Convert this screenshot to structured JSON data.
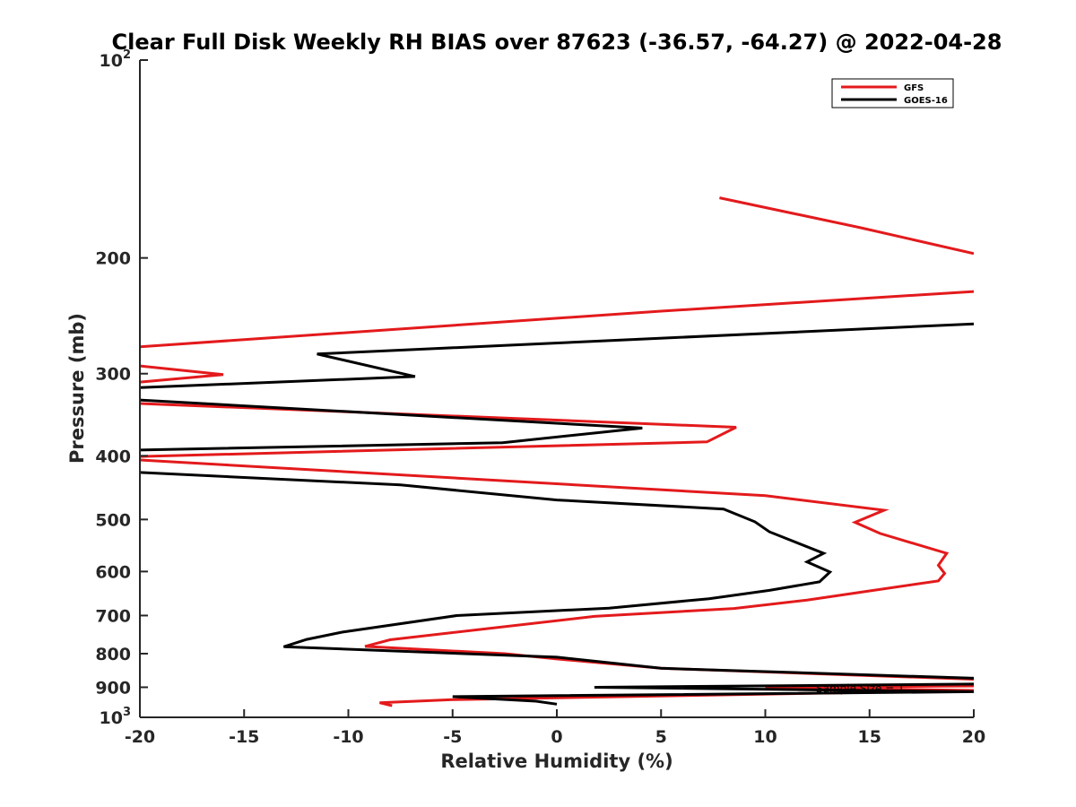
{
  "chart_data": {
    "type": "line",
    "title": "Clear Full Disk Weekly RH BIAS over 87623 (-36.57, -64.27) @ 2022-04-28",
    "xlabel": "Relative Humidity (%)",
    "ylabel": "Pressure (mb)",
    "xlim": [
      -20,
      20
    ],
    "ylim": [
      100,
      1000
    ],
    "yscale": "log",
    "y_reversed": true,
    "grid": false,
    "legend_placement": "top-right",
    "x_ticks": [
      -20,
      -15,
      -10,
      -5,
      0,
      5,
      10,
      15,
      20
    ],
    "x_tick_labels": [
      "-20",
      "-15",
      "-10",
      "-5",
      "0",
      "5",
      "10",
      "15",
      "20"
    ],
    "y_ticks": [
      100,
      200,
      300,
      400,
      500,
      600,
      700,
      800,
      900,
      1000
    ],
    "y_tick_labels": [
      {
        "base": "10",
        "exp": "2"
      },
      {
        "base": "200",
        "exp": ""
      },
      {
        "base": "300",
        "exp": ""
      },
      {
        "base": "400",
        "exp": ""
      },
      {
        "base": "500",
        "exp": ""
      },
      {
        "base": "600",
        "exp": ""
      },
      {
        "base": "700",
        "exp": ""
      },
      {
        "base": "800",
        "exp": ""
      },
      {
        "base": "900",
        "exp": ""
      },
      {
        "base": "10",
        "exp": "3"
      }
    ],
    "annotation": "Sample Size = 1",
    "series": [
      {
        "name": "GFS",
        "color": "#e31a1c",
        "points": [
          [
            7.8,
            162
          ],
          [
            14.6,
            180
          ],
          [
            20,
            197
          ],
          null,
          [
            20,
            225
          ],
          [
            5,
            241
          ],
          [
            -20,
            273
          ],
          null,
          [
            -20,
            292
          ],
          [
            -16,
            301
          ],
          [
            -20,
            309
          ],
          null,
          [
            -20,
            333
          ],
          [
            8.6,
            362
          ],
          [
            7.2,
            381
          ],
          [
            -20,
            401
          ],
          null,
          [
            -20,
            406
          ],
          [
            10,
            460
          ],
          [
            15.7,
            484
          ],
          [
            14.3,
            505
          ],
          [
            15.5,
            525
          ],
          [
            18.7,
            563
          ],
          [
            18.3,
            587
          ],
          [
            18.6,
            604
          ],
          [
            18.3,
            620
          ],
          [
            14.6,
            645
          ],
          [
            12,
            663
          ],
          [
            8.5,
            683
          ],
          [
            1.8,
            702
          ],
          [
            -8,
            762
          ],
          [
            -9.2,
            780
          ],
          [
            -2.5,
            800
          ],
          [
            0,
            815
          ],
          [
            5,
            842
          ],
          [
            20,
            875
          ],
          null,
          [
            20,
            896
          ],
          [
            10,
            900
          ],
          [
            20,
            910
          ],
          [
            -5,
            940
          ],
          [
            -8.5,
            950
          ],
          [
            -7.9,
            960
          ]
        ]
      },
      {
        "name": "GOES-16",
        "color": "#000000",
        "points": [
          [
            20,
            252
          ],
          [
            -11.5,
            280
          ],
          [
            -6.8,
            303
          ],
          [
            -20,
            315
          ],
          null,
          [
            -20,
            329
          ],
          [
            4.1,
            363
          ],
          [
            -2.6,
            382
          ],
          [
            -20,
            392
          ],
          null,
          [
            -20,
            424
          ],
          [
            -7.5,
            443
          ],
          [
            0,
            467
          ],
          [
            8,
            482
          ],
          [
            9.5,
            504
          ],
          [
            10.2,
            522
          ],
          [
            12.8,
            563
          ],
          [
            12,
            580
          ],
          [
            13.1,
            601
          ],
          [
            12.6,
            622
          ],
          [
            10.2,
            641
          ],
          [
            7.3,
            660
          ],
          [
            2.5,
            682
          ],
          [
            -4.8,
            700
          ],
          [
            -10.3,
            742
          ],
          [
            -12,
            761
          ],
          [
            -13.1,
            781
          ],
          [
            0,
            810
          ],
          [
            5,
            842
          ],
          [
            20,
            872
          ],
          null,
          [
            20,
            890
          ],
          [
            1.8,
            900
          ],
          [
            20,
            914
          ],
          [
            -5,
            930
          ],
          [
            -1,
            945
          ],
          [
            0,
            955
          ]
        ]
      }
    ]
  }
}
